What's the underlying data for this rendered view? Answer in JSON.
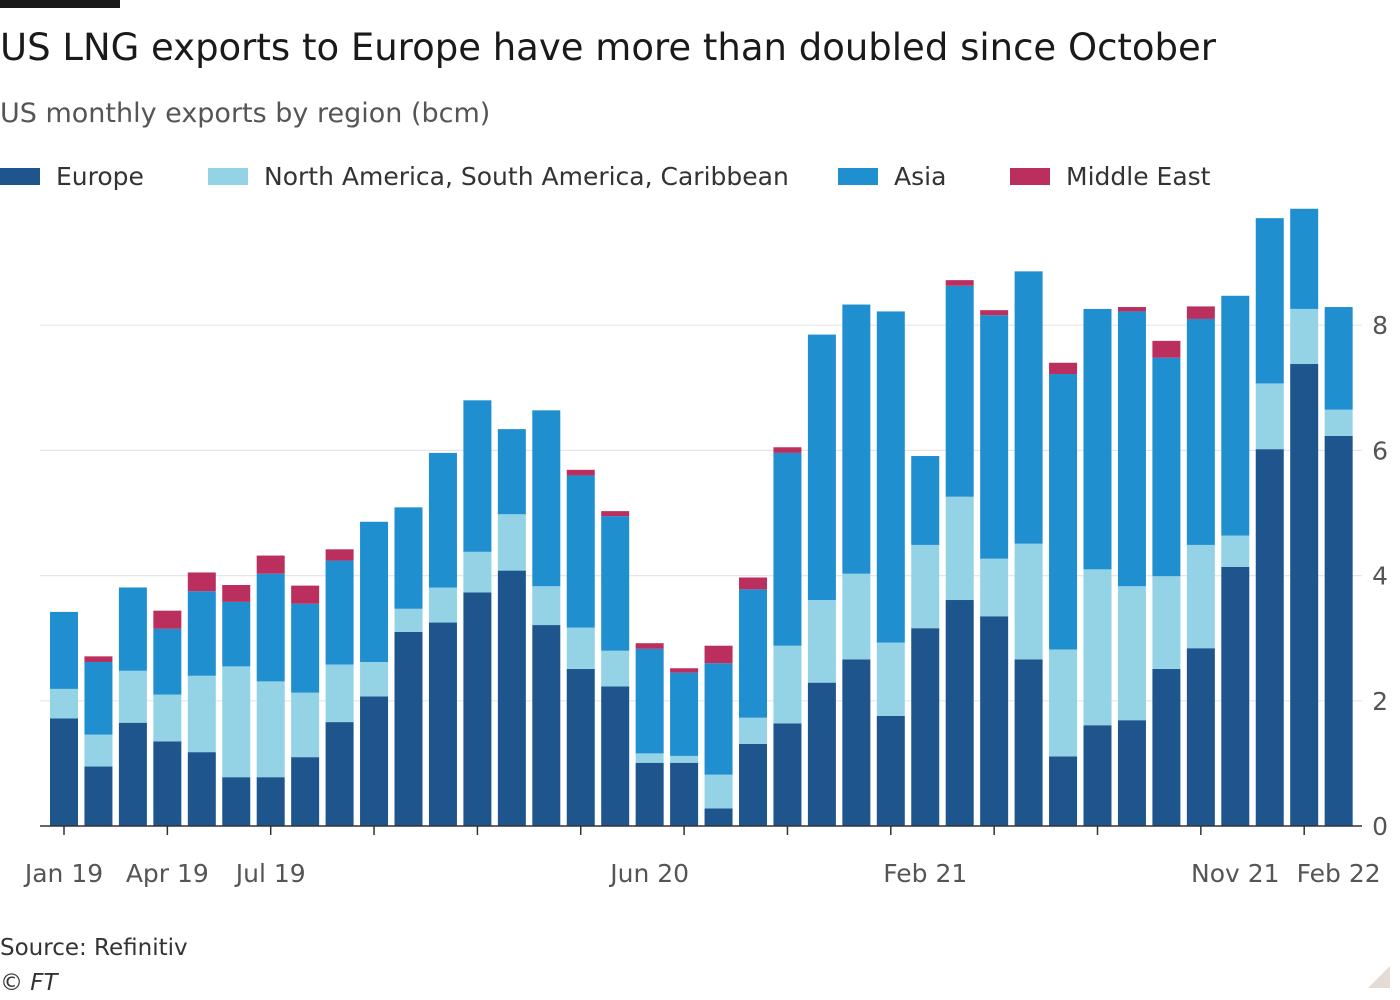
{
  "title": "US LNG exports to Europe have more than doubled since October",
  "subtitle": "US monthly exports by region (bcm)",
  "source": "Source: Refinitiv",
  "copyright": "© FT",
  "colors": {
    "Europe": "#1e558c",
    "North America, South America, Caribbean": "#94d2e6",
    "Asia": "#1f8fd0",
    "Middle East": "#bb2f5f",
    "gridline": "#e6e6e6",
    "axis_text": "#555555"
  },
  "chart_data": {
    "type": "bar",
    "stacked": true,
    "categories": [
      "Jan 19",
      "Feb 19",
      "Mar 19",
      "Apr 19",
      "May 19",
      "Jun 19",
      "Jul 19",
      "Aug 19",
      "Sep 19",
      "Oct 19",
      "Nov 19",
      "Dec 19",
      "Jan 20",
      "Feb 20",
      "Mar 20",
      "Apr 20",
      "May 20",
      "Jun 20",
      "Jul 20",
      "Aug 20",
      "Sep 20",
      "Oct 20",
      "Nov 20",
      "Dec 20",
      "Jan 21",
      "Feb 21",
      "Mar 21",
      "Apr 21",
      "May 21",
      "Jun 21",
      "Jul 21",
      "Aug 21",
      "Sep 21",
      "Oct 21",
      "Nov 21",
      "Dec 21",
      "Jan 22",
      "Feb 22"
    ],
    "tick_labels": [
      "Jan 19",
      "Apr 19",
      "Jul 19",
      "Jun 20",
      "Feb 21",
      "Nov 21",
      "Feb 22"
    ],
    "series": [
      {
        "name": "Europe",
        "values": [
          1.72,
          0.95,
          1.65,
          1.35,
          1.18,
          0.78,
          0.78,
          1.1,
          1.66,
          2.07,
          3.1,
          3.25,
          3.73,
          4.08,
          3.21,
          2.51,
          2.23,
          1.01,
          1.01,
          0.28,
          1.31,
          1.64,
          2.29,
          2.66,
          1.76,
          3.16,
          3.61,
          3.35,
          2.66,
          1.11,
          1.61,
          1.69,
          2.51,
          2.84,
          4.14,
          6.02,
          7.38,
          6.23
        ]
      },
      {
        "name": "North America, South America, Caribbean",
        "values": [
          0.47,
          0.51,
          0.83,
          0.75,
          1.22,
          1.77,
          1.53,
          1.03,
          0.92,
          0.55,
          0.37,
          0.56,
          0.65,
          0.9,
          0.62,
          0.66,
          0.57,
          0.15,
          0.11,
          0.54,
          0.42,
          1.24,
          1.32,
          1.37,
          1.17,
          1.33,
          1.65,
          0.92,
          1.85,
          1.71,
          2.49,
          2.14,
          1.48,
          1.65,
          0.5,
          1.05,
          0.88,
          0.42
        ]
      },
      {
        "name": "Asia",
        "values": [
          1.23,
          1.16,
          1.33,
          1.05,
          1.35,
          1.03,
          1.72,
          1.42,
          1.66,
          2.24,
          1.62,
          2.15,
          2.42,
          1.36,
          2.81,
          2.43,
          2.15,
          1.67,
          1.33,
          1.78,
          2.05,
          3.08,
          4.24,
          4.3,
          5.29,
          1.42,
          3.37,
          3.89,
          4.35,
          4.4,
          4.16,
          4.39,
          3.49,
          3.61,
          3.83,
          2.64,
          1.6,
          1.64
        ]
      },
      {
        "name": "Middle East",
        "values": [
          0,
          0.09,
          0,
          0.29,
          0.3,
          0.27,
          0.29,
          0.29,
          0.18,
          0,
          0,
          0,
          0,
          0,
          0,
          0.09,
          0.08,
          0.09,
          0.07,
          0.28,
          0.19,
          0.09,
          0,
          0,
          0,
          0,
          0.09,
          0.08,
          0,
          0.18,
          0,
          0.07,
          0.27,
          0.2,
          0,
          0,
          0,
          0
        ]
      }
    ],
    "y_ticks": [
      0,
      2,
      4,
      6,
      8
    ],
    "ylim": [
      0,
      10
    ],
    "y_axis_side": "right",
    "grid": true,
    "legend_position": "top"
  }
}
